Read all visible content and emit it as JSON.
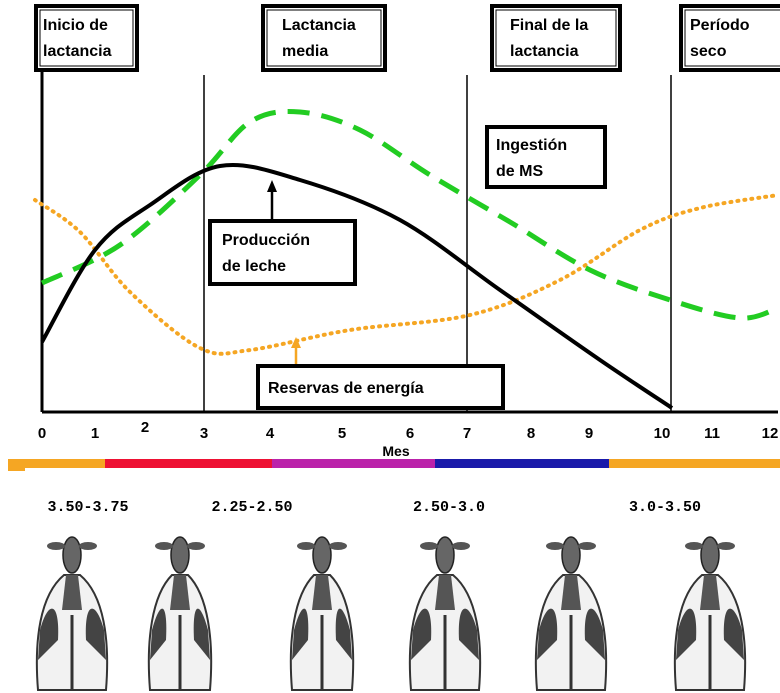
{
  "phases": [
    {
      "lines": [
        "Inicio de",
        "lactancia"
      ]
    },
    {
      "lines": [
        "Lactancia",
        "media"
      ]
    },
    {
      "lines": [
        "Final de la",
        "lactancia"
      ]
    },
    {
      "lines": [
        "Período",
        "seco"
      ]
    }
  ],
  "curves": {
    "intake": [
      "Ingestión",
      "de MS"
    ],
    "milk": [
      "Producción",
      "de leche"
    ],
    "reserves": "Reservas de energía"
  },
  "x_axis": {
    "label": "Mes",
    "ticks": [
      0,
      1,
      2,
      3,
      4,
      5,
      6,
      7,
      8,
      9,
      10,
      11,
      12
    ]
  },
  "body_condition": [
    "3.50-3.75",
    "2.25-2.50",
    "2.50-3.0",
    "3.0-3.50"
  ]
}
